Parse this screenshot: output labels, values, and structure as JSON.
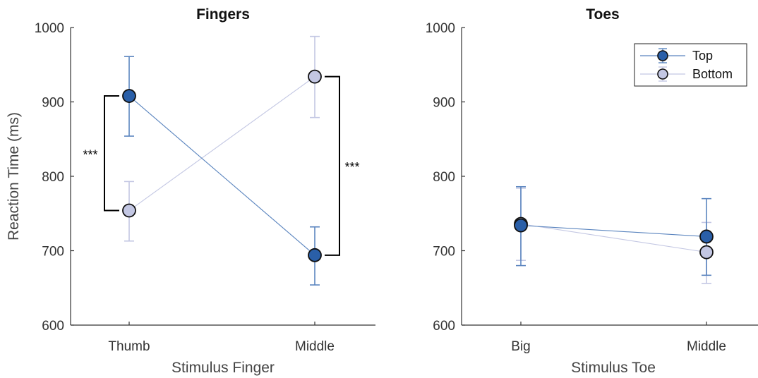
{
  "chart_data": [
    {
      "type": "line",
      "title": "Fingers",
      "xlabel": "Stimulus Finger",
      "ylabel": "Reaction Time (ms)",
      "categories": [
        "Thumb",
        "Middle"
      ],
      "ylim": [
        600,
        1000
      ],
      "yticks": [
        600,
        700,
        800,
        900,
        1000
      ],
      "series": [
        {
          "name": "Top",
          "values": [
            908,
            694
          ],
          "err_low": [
            854,
            654
          ],
          "err_high": [
            961,
            732
          ],
          "color": "#2a5fa8",
          "line_color": "#5b85bf"
        },
        {
          "name": "Bottom",
          "values": [
            754,
            934
          ],
          "err_low": [
            713,
            879
          ],
          "err_high": [
            793,
            988
          ],
          "color": "#c3c7e3",
          "line_color": "#c3c7e3"
        }
      ],
      "annotations": [
        {
          "text": "***",
          "category": "Thumb",
          "from": 908,
          "to": 754,
          "side": "left"
        },
        {
          "text": "***",
          "category": "Middle",
          "from": 934,
          "to": 694,
          "side": "right"
        }
      ]
    },
    {
      "type": "line",
      "title": "Toes",
      "xlabel": "Stimulus Toe",
      "ylabel": "",
      "categories": [
        "Big",
        "Middle"
      ],
      "ylim": [
        600,
        1000
      ],
      "yticks": [
        600,
        700,
        800,
        900,
        1000
      ],
      "legend": {
        "position": "top-right",
        "entries": [
          "Top",
          "Bottom"
        ]
      },
      "series": [
        {
          "name": "Top",
          "values": [
            734,
            719
          ],
          "err_low": [
            680,
            667
          ],
          "err_high": [
            786,
            770
          ],
          "color": "#2a5fa8",
          "line_color": "#5b85bf"
        },
        {
          "name": "Bottom",
          "values": [
            736,
            698
          ],
          "err_low": [
            687,
            656
          ],
          "err_high": [
            784,
            738
          ],
          "color": "#c3c7e3",
          "line_color": "#c3c7e3"
        }
      ]
    }
  ]
}
